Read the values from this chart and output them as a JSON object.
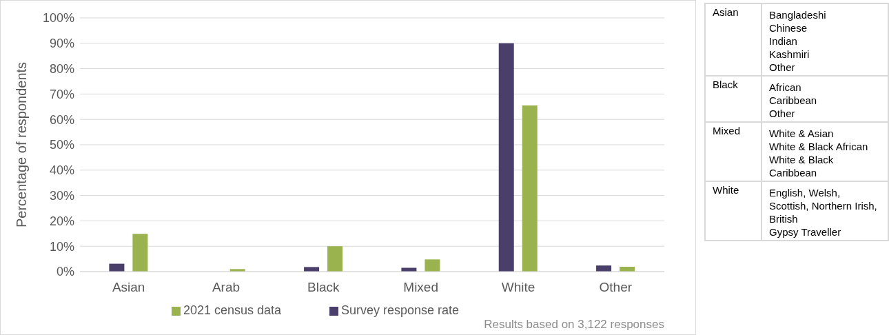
{
  "chart_data": [
    {
      "type": "bar",
      "ylabel": "Percentage of respondents",
      "categories": [
        "Asian",
        "Arab",
        "Black",
        "Mixed",
        "White",
        "Other"
      ],
      "series": [
        {
          "name": "Survey response rate",
          "color": "#4a3f6b",
          "values": [
            3.1,
            null,
            1.8,
            1.5,
            90,
            2.4
          ]
        },
        {
          "name": "2021 census data",
          "color": "#9bb34f",
          "values": [
            14.9,
            1.0,
            10.0,
            4.8,
            65.5,
            1.9
          ]
        }
      ],
      "ylim": [
        0,
        100
      ],
      "yticks": [
        {
          "value": 0,
          "label": "0%"
        },
        {
          "value": 10,
          "label": "10%"
        },
        {
          "value": 20,
          "label": "20%"
        },
        {
          "value": 30,
          "label": "30%"
        },
        {
          "value": 40,
          "label": "40%"
        },
        {
          "value": 50,
          "label": "50%"
        },
        {
          "value": 60,
          "label": "60%"
        },
        {
          "value": 70,
          "label": "70%"
        },
        {
          "value": 80,
          "label": "80%"
        },
        {
          "value": 90,
          "label": "90%"
        },
        {
          "value": 100,
          "label": "100%"
        }
      ],
      "grid": "y",
      "legend": "bottom",
      "annotations": [
        "Results based on 3,122 responses"
      ]
    },
    {
      "type": "other",
      "categories": [
        "Asian",
        "Black",
        "Mixed",
        "White"
      ],
      "cell_labels": [
        [
          "Bangladeshi",
          "Chinese",
          "Indian",
          "Kashmiri",
          "Other"
        ],
        [
          "African",
          "Caribbean",
          "Other"
        ],
        [
          "White & Asian",
          "White & Black African",
          "White & Black Caribbean"
        ],
        [
          "English, Welsh, Scottish, Northern Irish, British",
          "Gypsy Traveller"
        ]
      ]
    }
  ]
}
